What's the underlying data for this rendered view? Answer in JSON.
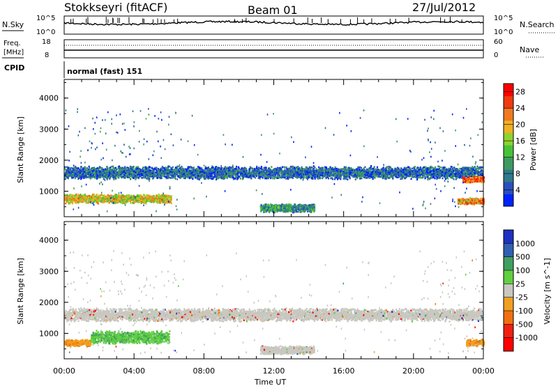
{
  "header": {
    "station": "Stokkseyri (fitACF)",
    "beam": "Beam 01",
    "date": "27/Jul/2012"
  },
  "strips": {
    "nsky_label": "N.Sky",
    "nsearch_label": "N.Search",
    "noise_ticks": [
      "10^5",
      "10^0"
    ],
    "freq_label_1": "Freq.",
    "freq_label_2": "[MHz]",
    "freq_ticks": [
      "18",
      "8"
    ],
    "nave_label": "Nave",
    "nave_ticks": [
      "60",
      "0"
    ],
    "cpid_label": "CPID",
    "cpid_value": "normal (fast) 151"
  },
  "colors": {
    "power_scale": [
      "#0022ff",
      "#2b4fbf",
      "#2f7a8a",
      "#3e9a62",
      "#47c23a",
      "#8fd22e",
      "#f0b020",
      "#f07a20",
      "#f03a10",
      "#ff0000"
    ],
    "velocity_scale": [
      "#2030c0",
      "#3060b0",
      "#40a060",
      "#60d040",
      "#c8c8c0",
      "#f0a020",
      "#f07010",
      "#f02010",
      "#ff0000"
    ],
    "bg_scatter": "#c8c8c0"
  },
  "chart_data": [
    {
      "type": "heatmap",
      "name": "power",
      "title": "",
      "xlabel": "Time UT",
      "ylabel": "Slant Range [km]",
      "x_tick_labels": [
        "00:00",
        "04:00",
        "08:00",
        "12:00",
        "16:00",
        "20:00",
        "00:00"
      ],
      "x_range_hours": [
        0,
        24
      ],
      "y_tick_labels": [
        "1000",
        "2000",
        "3000",
        "4000"
      ],
      "ylim": [
        180,
        4600
      ],
      "colorbar": {
        "label": "Power [dB]",
        "ticks": [
          "4",
          "8",
          "12",
          "16",
          "20",
          "24",
          "28"
        ],
        "range": [
          0,
          30
        ]
      },
      "bands": [
        {
          "t_start": 0.0,
          "t_end": 23.9,
          "range_center": 1620,
          "range_halfwidth": 170,
          "dominant_power": 6
        },
        {
          "t_start": 0.0,
          "t_end": 6.1,
          "range_center": 780,
          "range_halfwidth": 120,
          "dominant_power": 18
        },
        {
          "t_start": 11.2,
          "t_end": 14.3,
          "range_center": 480,
          "range_halfwidth": 110,
          "dominant_power": 9
        },
        {
          "t_start": 22.5,
          "t_end": 24.0,
          "range_center": 700,
          "range_halfwidth": 90,
          "dominant_power": 22
        },
        {
          "t_start": 22.8,
          "t_end": 24.0,
          "range_center": 1400,
          "range_halfwidth": 80,
          "dominant_power": 24
        }
      ]
    },
    {
      "type": "heatmap",
      "name": "velocity",
      "title": "",
      "xlabel": "Time UT",
      "ylabel": "Slant Range [km]",
      "x_tick_labels": [
        "00:00",
        "04:00",
        "08:00",
        "12:00",
        "16:00",
        "20:00",
        "00:00"
      ],
      "x_range_hours": [
        0,
        24
      ],
      "y_tick_labels": [
        "1000",
        "2000",
        "3000",
        "4000"
      ],
      "ylim": [
        180,
        4600
      ],
      "colorbar": {
        "label": "Velocity [m s^-1]",
        "ticks": [
          "1000",
          "500",
          "100",
          "25",
          "-25",
          "-100",
          "-500",
          "-1000"
        ]
      },
      "bands": [
        {
          "t_start": 0.0,
          "t_end": 23.9,
          "range_center": 1620,
          "range_halfwidth": 170,
          "dominant_velocity": 0
        },
        {
          "t_start": 0.0,
          "t_end": 1.5,
          "range_center": 720,
          "range_halfwidth": 90,
          "dominant_velocity": -150
        },
        {
          "t_start": 1.5,
          "t_end": 6.0,
          "range_center": 900,
          "range_halfwidth": 170,
          "dominant_velocity": 200
        },
        {
          "t_start": 11.2,
          "t_end": 14.3,
          "range_center": 480,
          "range_halfwidth": 110,
          "dominant_velocity": 0
        },
        {
          "t_start": 23.0,
          "t_end": 24.0,
          "range_center": 720,
          "range_halfwidth": 90,
          "dominant_velocity": -150
        }
      ]
    }
  ]
}
